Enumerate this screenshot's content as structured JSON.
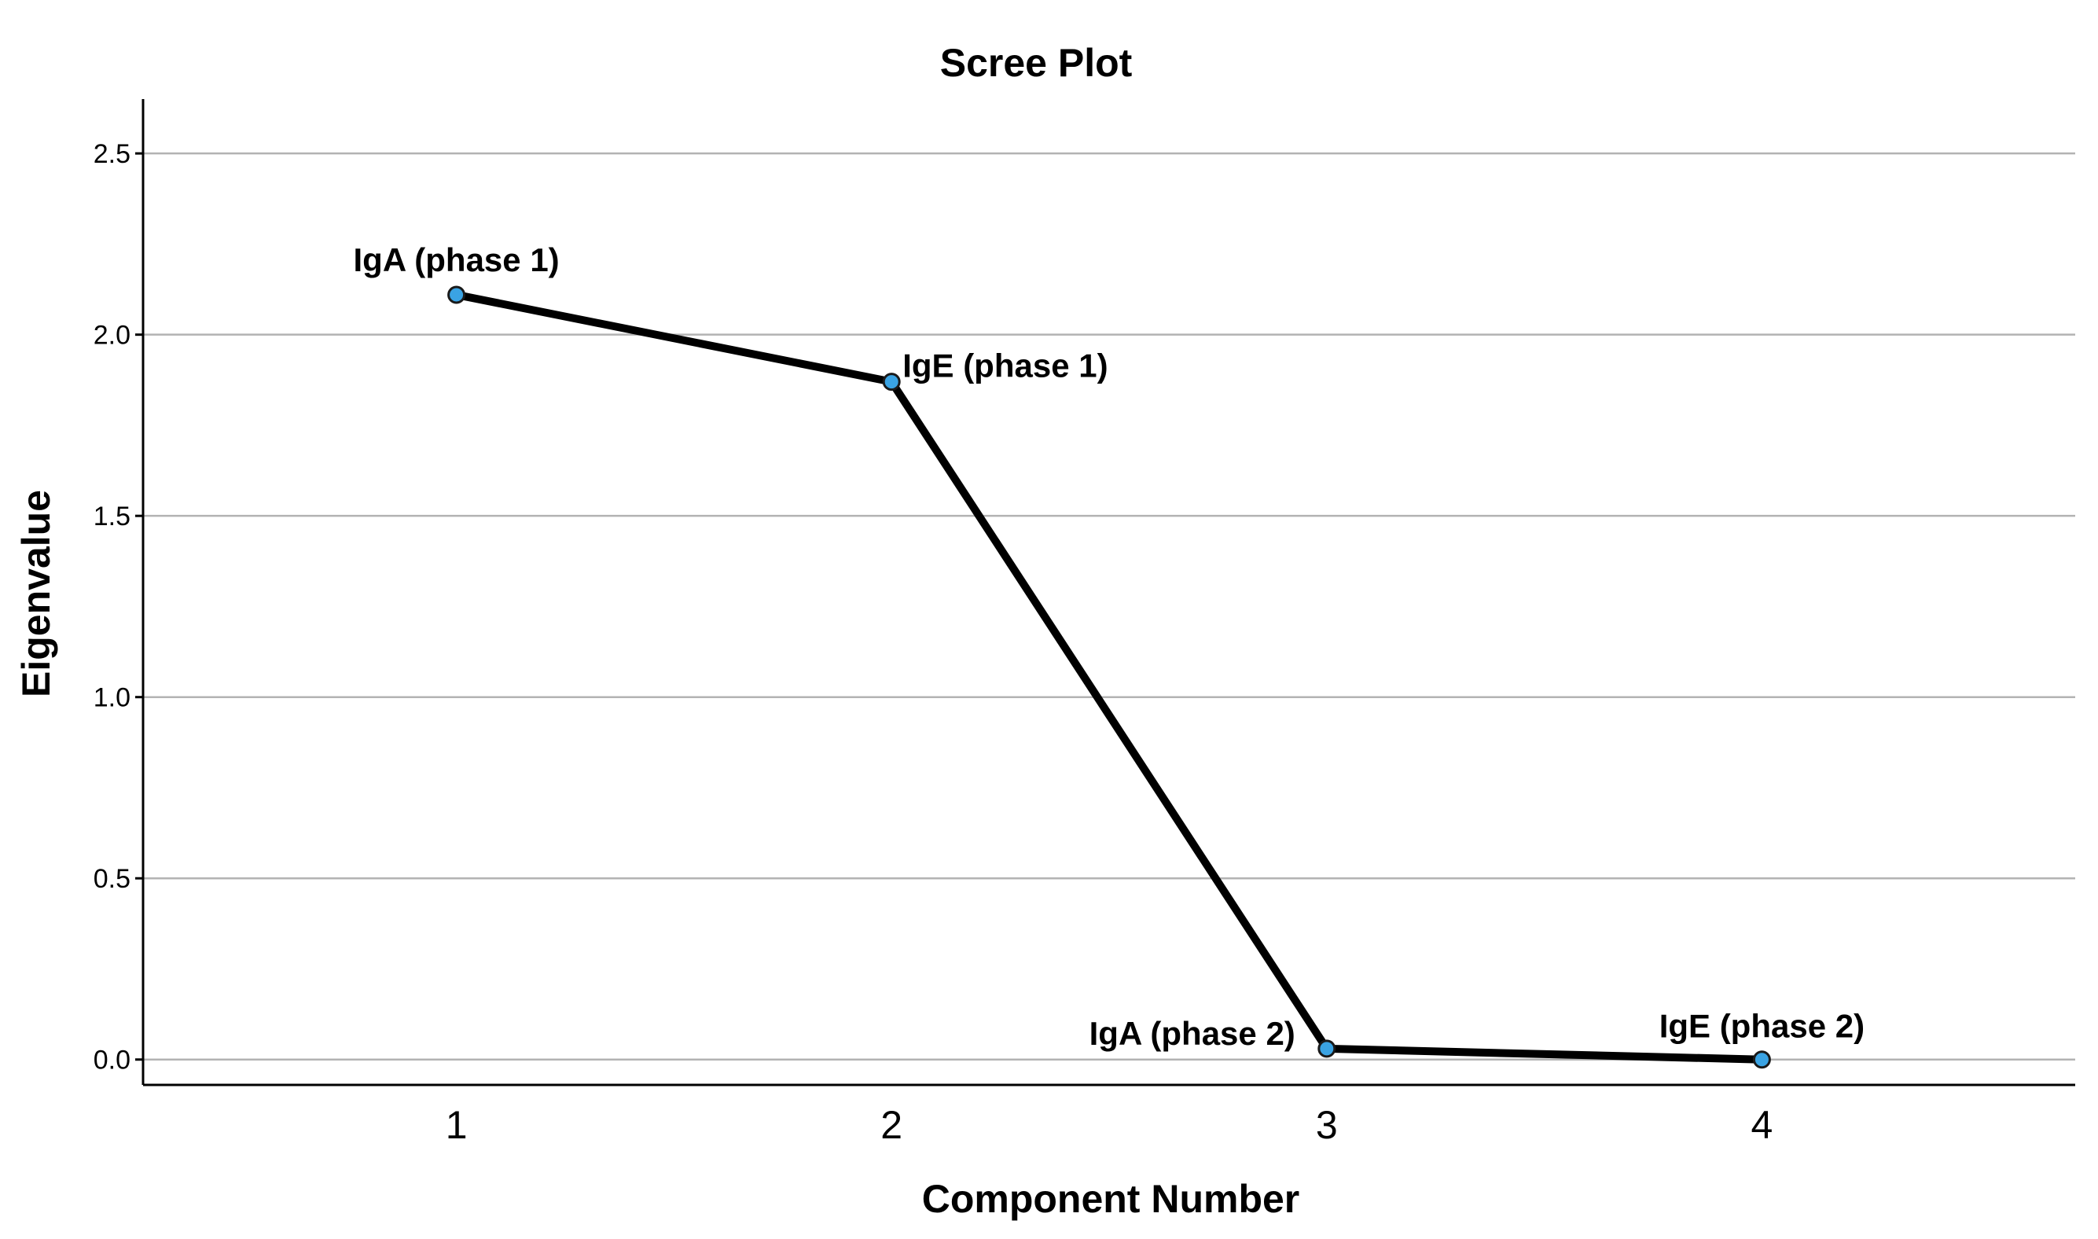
{
  "chart_data": {
    "type": "line",
    "title": "Scree Plot",
    "xlabel": "Component Number",
    "ylabel": "Eigenvalue",
    "x": [
      1,
      2,
      3,
      4
    ],
    "x_tick_labels": [
      "1",
      "2",
      "3",
      "4"
    ],
    "xlim": [
      0.28,
      4.72
    ],
    "ylim": [
      -0.07,
      2.65
    ],
    "y_ticks": [
      0.0,
      0.5,
      1.0,
      1.5,
      2.0,
      2.5
    ],
    "y_tick_labels": [
      "0.0",
      "0.5",
      "1.0",
      "1.5",
      "2.0",
      "2.5"
    ],
    "grid": "horizontal",
    "series": [
      {
        "values": [
          2.11,
          1.87,
          0.03,
          0.0
        ],
        "point_labels": [
          "IgA (phase 1)",
          "IgE (phase 1)",
          "IgA (phase 2)",
          "IgE (phase 2)"
        ]
      }
    ],
    "colors": {
      "line": "#000000",
      "marker": "#3aa3e3",
      "grid": "#b3b3b3"
    }
  }
}
